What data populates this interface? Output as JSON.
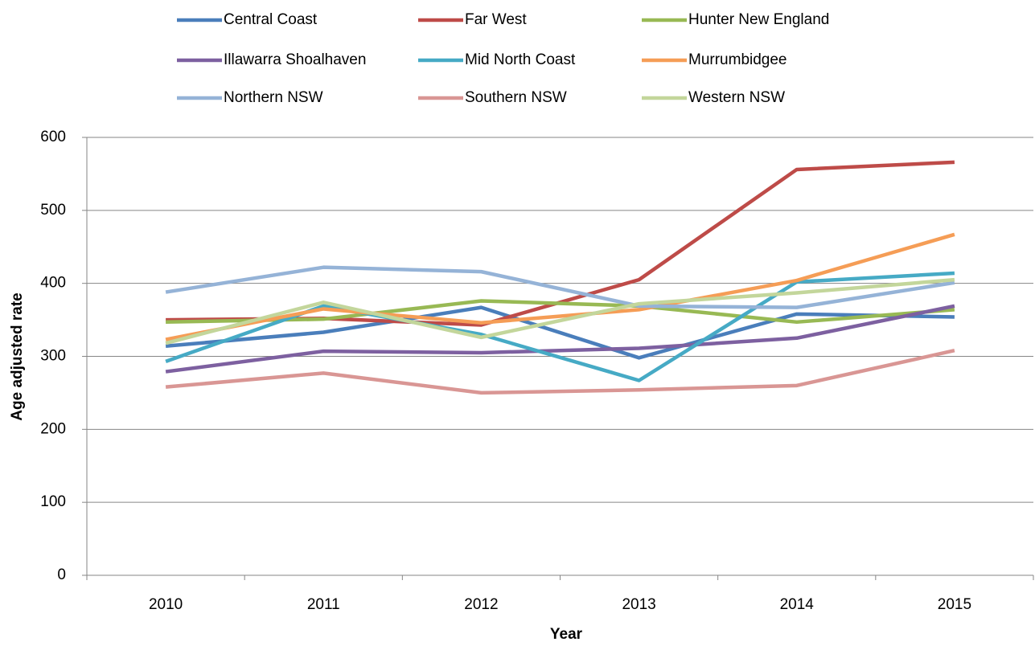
{
  "chart_data": {
    "type": "line",
    "x_label": "Year",
    "y_label": "Age adjusted rate",
    "categories": [
      "2010",
      "2011",
      "2012",
      "2013",
      "2014",
      "2015"
    ],
    "ylim": [
      0,
      600
    ],
    "yticks": [
      0,
      100,
      200,
      300,
      400,
      500,
      600
    ],
    "grid": true,
    "series": [
      {
        "name": "Central Coast",
        "color": "#4a7ebb",
        "values": [
          314,
          333,
          367,
          298,
          358,
          354
        ]
      },
      {
        "name": "Far West",
        "color": "#be4b48",
        "values": [
          350,
          352,
          343,
          405,
          556,
          566
        ]
      },
      {
        "name": "Hunter New England",
        "color": "#98b954",
        "values": [
          347,
          351,
          376,
          369,
          347,
          364
        ]
      },
      {
        "name": "Illawarra Shoalhaven",
        "color": "#7d60a0",
        "values": [
          279,
          307,
          305,
          311,
          325,
          369
        ]
      },
      {
        "name": "Mid North Coast",
        "color": "#46aac5",
        "values": [
          293,
          369,
          330,
          267,
          402,
          414
        ]
      },
      {
        "name": "Murrumbidgee",
        "color": "#f59d56",
        "values": [
          323,
          365,
          346,
          364,
          404,
          467
        ]
      },
      {
        "name": "Northern NSW",
        "color": "#95b3d7",
        "values": [
          388,
          422,
          416,
          369,
          367,
          401
        ]
      },
      {
        "name": "Southern NSW",
        "color": "#d99694",
        "values": [
          258,
          277,
          250,
          254,
          260,
          308
        ]
      },
      {
        "name": "Western NSW",
        "color": "#c3d69b",
        "values": [
          318,
          374,
          326,
          372,
          387,
          405
        ]
      }
    ]
  }
}
